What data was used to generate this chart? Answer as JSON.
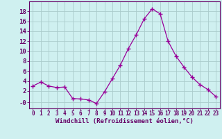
{
  "x": [
    0,
    1,
    2,
    3,
    4,
    5,
    6,
    7,
    8,
    9,
    10,
    11,
    12,
    13,
    14,
    15,
    16,
    17,
    18,
    19,
    20,
    21,
    22,
    23
  ],
  "y": [
    3.0,
    3.8,
    3.0,
    2.7,
    2.8,
    0.5,
    0.4,
    0.2,
    -0.5,
    1.8,
    4.5,
    7.2,
    10.5,
    13.3,
    16.5,
    18.5,
    17.5,
    12.0,
    9.0,
    6.8,
    4.8,
    3.3,
    2.3,
    0.9
  ],
  "line_color": "#990099",
  "marker": "+",
  "marker_size": 4,
  "bg_color": "#cff0f0",
  "grid_color": "#aacccc",
  "xlabel": "Windchill (Refroidissement éolien,°C)",
  "ytick_labels": [
    "-0",
    "2",
    "4",
    "6",
    "8",
    "10",
    "12",
    "14",
    "16",
    "18"
  ],
  "ytick_vals": [
    -0.3,
    2,
    4,
    6,
    8,
    10,
    12,
    14,
    16,
    18
  ],
  "ylim": [
    -1.5,
    20.0
  ],
  "xlim": [
    -0.5,
    23.5
  ],
  "label_color": "#660066",
  "tick_color": "#660066",
  "font_size_xlabel": 6.5,
  "font_size_ytick": 6.5,
  "font_size_xtick": 5.5
}
